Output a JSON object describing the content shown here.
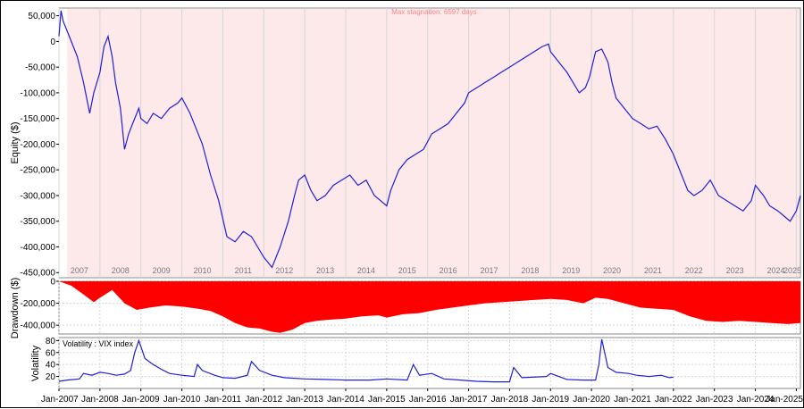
{
  "chart_data": [
    {
      "type": "line",
      "name": "equity-panel",
      "ylabel": "Equity ($)",
      "annotation": "Max stagnation: 6597 days",
      "ylim": [
        -460000,
        65000
      ],
      "xlim": [
        2007.0,
        2025.1
      ],
      "yticks": [
        "50,000",
        "0",
        "-50,000",
        "-100,000",
        "-150,000",
        "-200,000",
        "-250,000",
        "-300,000",
        "-350,000",
        "-400,000",
        "-450,000"
      ],
      "ytick_values": [
        50000,
        0,
        -50000,
        -100000,
        -150000,
        -200000,
        -250000,
        -300000,
        -350000,
        -400000,
        -450000
      ],
      "year_labels": [
        "2007",
        "2008",
        "2009",
        "2010",
        "2011",
        "2012",
        "2013",
        "2014",
        "2015",
        "2016",
        "2017",
        "2018",
        "2019",
        "2020",
        "2021",
        "2022",
        "2023",
        "2024",
        "2025"
      ],
      "stagnation_shade": [
        2007.2,
        2025.1
      ],
      "colors": {
        "line": "#1f1fd6",
        "shade": "#fde9ea"
      },
      "x": [
        2007.0,
        2007.05,
        2007.1,
        2007.2,
        2007.3,
        2007.45,
        2007.6,
        2007.75,
        2007.85,
        2008.0,
        2008.1,
        2008.2,
        2008.3,
        2008.38,
        2008.5,
        2008.6,
        2008.7,
        2008.8,
        2008.95,
        2009.0,
        2009.15,
        2009.3,
        2009.5,
        2009.7,
        2009.9,
        2010.0,
        2010.2,
        2010.35,
        2010.5,
        2010.7,
        2010.9,
        2011.1,
        2011.3,
        2011.5,
        2011.7,
        2011.85,
        2012.0,
        2012.2,
        2012.4,
        2012.6,
        2012.75,
        2012.85,
        2013.0,
        2013.15,
        2013.3,
        2013.5,
        2013.7,
        2013.9,
        2014.1,
        2014.3,
        2014.5,
        2014.7,
        2014.85,
        2015.0,
        2015.1,
        2015.3,
        2015.5,
        2015.7,
        2015.9,
        2016.1,
        2016.3,
        2016.5,
        2016.7,
        2016.9,
        2017.0,
        2017.2,
        2017.4,
        2017.6,
        2017.8,
        2018.0,
        2018.2,
        2018.4,
        2018.6,
        2018.8,
        2018.95,
        2019.0,
        2019.2,
        2019.4,
        2019.55,
        2019.7,
        2019.85,
        2019.95,
        2020.1,
        2020.25,
        2020.4,
        2020.5,
        2020.6,
        2020.8,
        2021.0,
        2021.2,
        2021.4,
        2021.6,
        2021.8,
        2022.0,
        2022.2,
        2022.35,
        2022.5,
        2022.7,
        2022.9,
        2023.1,
        2023.3,
        2023.5,
        2023.7,
        2023.9,
        2024.0,
        2024.2,
        2024.35,
        2024.55,
        2024.7,
        2024.85,
        2025.0,
        2025.1
      ],
      "y": [
        10000,
        60000,
        40000,
        20000,
        0,
        -30000,
        -80000,
        -140000,
        -100000,
        -60000,
        -10000,
        10000,
        -30000,
        -80000,
        -130000,
        -210000,
        -180000,
        -160000,
        -130000,
        -150000,
        -160000,
        -140000,
        -150000,
        -130000,
        -120000,
        -110000,
        -140000,
        -170000,
        -200000,
        -260000,
        -310000,
        -380000,
        -390000,
        -370000,
        -380000,
        -400000,
        -420000,
        -440000,
        -400000,
        -350000,
        -300000,
        -270000,
        -260000,
        -290000,
        -310000,
        -300000,
        -280000,
        -270000,
        -260000,
        -280000,
        -270000,
        -300000,
        -310000,
        -320000,
        -290000,
        -250000,
        -230000,
        -220000,
        -210000,
        -180000,
        -170000,
        -160000,
        -140000,
        -120000,
        -100000,
        -90000,
        -80000,
        -70000,
        -60000,
        -50000,
        -40000,
        -30000,
        -20000,
        -10000,
        -5000,
        -20000,
        -40000,
        -60000,
        -80000,
        -100000,
        -90000,
        -70000,
        -20000,
        -15000,
        -40000,
        -80000,
        -110000,
        -130000,
        -150000,
        -160000,
        -170000,
        -165000,
        -190000,
        -220000,
        -260000,
        -290000,
        -300000,
        -290000,
        -270000,
        -300000,
        -310000,
        -320000,
        -330000,
        -310000,
        -280000,
        -300000,
        -320000,
        -330000,
        -340000,
        -350000,
        -330000,
        -300000
      ]
    },
    {
      "type": "area",
      "name": "drawdown-panel",
      "ylabel": "Drawdown ($)",
      "ylim": [
        -480000,
        0
      ],
      "yticks": [
        "0",
        "-200,000",
        "-400,000"
      ],
      "ytick_values": [
        0,
        -200000,
        -400000
      ],
      "colors": {
        "fill": "#ff0000"
      },
      "x": [
        2007.0,
        2007.3,
        2007.6,
        2007.85,
        2008.0,
        2008.3,
        2008.6,
        2008.9,
        2009.2,
        2009.6,
        2010.0,
        2010.4,
        2010.7,
        2011.0,
        2011.3,
        2011.6,
        2011.9,
        2012.2,
        2012.4,
        2012.7,
        2013.0,
        2013.3,
        2013.6,
        2014.0,
        2014.4,
        2014.8,
        2015.0,
        2015.4,
        2015.8,
        2016.2,
        2016.6,
        2017.0,
        2017.4,
        2017.8,
        2018.2,
        2018.6,
        2019.0,
        2019.4,
        2019.8,
        2020.1,
        2020.4,
        2020.8,
        2021.2,
        2021.6,
        2022.0,
        2022.4,
        2022.8,
        2023.2,
        2023.6,
        2024.0,
        2024.4,
        2024.8,
        2025.1
      ],
      "y": [
        0,
        -40000,
        -120000,
        -190000,
        -150000,
        -80000,
        -200000,
        -260000,
        -240000,
        -220000,
        -230000,
        -250000,
        -270000,
        -320000,
        -380000,
        -420000,
        -430000,
        -460000,
        -470000,
        -440000,
        -380000,
        -360000,
        -350000,
        -340000,
        -320000,
        -310000,
        -330000,
        -300000,
        -290000,
        -260000,
        -240000,
        -220000,
        -200000,
        -190000,
        -180000,
        -170000,
        -160000,
        -170000,
        -200000,
        -150000,
        -160000,
        -200000,
        -240000,
        -250000,
        -260000,
        -320000,
        -360000,
        -370000,
        -360000,
        -370000,
        -380000,
        -390000,
        -380000
      ]
    },
    {
      "type": "line",
      "name": "volatility-panel",
      "ylabel": "Volatility",
      "legend": "Volatility : VIX index",
      "ylim": [
        0,
        85
      ],
      "yticks": [
        "80",
        "60",
        "40",
        "20"
      ],
      "ytick_values": [
        80,
        60,
        40,
        20
      ],
      "xlim": [
        2007.0,
        2025.1
      ],
      "xticks": [
        "Jan-2007",
        "Jan-2008",
        "Jan-2009",
        "Jan-2010",
        "Jan-2011",
        "Jan-2012",
        "Jan-2013",
        "Jan-2014",
        "Jan-2015",
        "Jan-2016",
        "Jan-2017",
        "Jan-2018",
        "Jan-2019",
        "Jan-2020",
        "Jan-2021",
        "Jan-2022",
        "Jan-2023",
        "Jan-2024",
        "Jan-2025"
      ],
      "colors": {
        "line": "#1f1fd6"
      },
      "x": [
        2007.0,
        2007.2,
        2007.5,
        2007.6,
        2007.8,
        2008.0,
        2008.2,
        2008.4,
        2008.6,
        2008.75,
        2008.85,
        2008.95,
        2009.1,
        2009.3,
        2009.5,
        2009.7,
        2010.0,
        2010.3,
        2010.38,
        2010.5,
        2010.8,
        2011.0,
        2011.3,
        2011.6,
        2011.7,
        2011.9,
        2012.2,
        2012.5,
        2013.0,
        2013.5,
        2014.0,
        2014.6,
        2015.0,
        2015.5,
        2015.65,
        2015.8,
        2016.1,
        2016.4,
        2016.8,
        2017.2,
        2017.6,
        2018.0,
        2018.1,
        2018.3,
        2018.9,
        2019.0,
        2019.4,
        2019.8,
        2020.1,
        2020.18,
        2020.25,
        2020.4,
        2020.6,
        2020.9,
        2021.1,
        2021.4,
        2021.7,
        2021.9,
        2022.0
      ],
      "y": [
        12,
        14,
        16,
        25,
        22,
        27,
        25,
        22,
        24,
        30,
        60,
        80,
        50,
        40,
        32,
        25,
        22,
        20,
        40,
        30,
        22,
        18,
        17,
        22,
        45,
        30,
        22,
        18,
        16,
        15,
        14,
        14,
        16,
        14,
        40,
        22,
        25,
        16,
        14,
        12,
        11,
        11,
        35,
        18,
        20,
        25,
        15,
        14,
        14,
        40,
        82,
        35,
        27,
        25,
        22,
        20,
        22,
        18,
        19
      ]
    }
  ]
}
